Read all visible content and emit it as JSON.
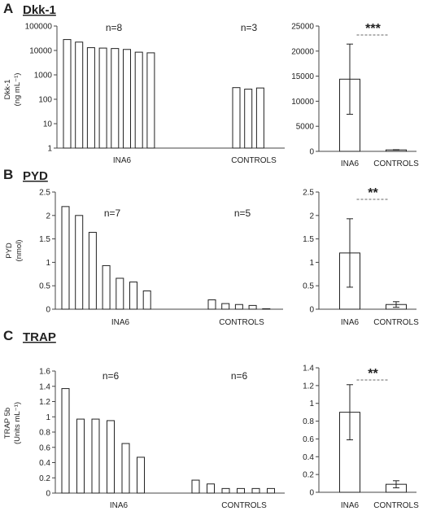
{
  "figure": {
    "panels": [
      {
        "letter": "A",
        "title": "Dkk-1",
        "ylabel_line1": "Dkk-1",
        "ylabel_line2": "(ng mL⁻¹)"
      },
      {
        "letter": "B",
        "title": "PYD",
        "ylabel_line1": "PYD",
        "ylabel_line2": "(nmol)"
      },
      {
        "letter": "C",
        "title": "TRAP",
        "ylabel_line1": "TRAP 5b",
        "ylabel_line2": "(Units mL⁻¹)"
      }
    ]
  },
  "chart_data": [
    {
      "type": "bar",
      "panel": "A",
      "role": "individual",
      "yscale": "log",
      "ylim": [
        1,
        100000
      ],
      "yticks": [
        "1",
        "10",
        "100",
        "1000",
        "10000",
        "100000"
      ],
      "groups": [
        {
          "label": "INA6",
          "n_label": "n=8",
          "values": [
            28000,
            22000,
            13000,
            12500,
            12000,
            11000,
            8500,
            8000
          ]
        },
        {
          "label": "CONTROLS",
          "n_label": "n=3",
          "values": [
            300,
            260,
            290
          ]
        }
      ]
    },
    {
      "type": "bar",
      "panel": "A",
      "role": "summary",
      "ylim": [
        0,
        25000
      ],
      "yticks": [
        "0",
        "5000",
        "10000",
        "15000",
        "20000",
        "25000"
      ],
      "categories": [
        "INA6",
        "CONTROLS"
      ],
      "values": [
        14400,
        290
      ],
      "errors": [
        7000,
        40
      ],
      "significance": "***"
    },
    {
      "type": "bar",
      "panel": "B",
      "role": "individual",
      "ylim": [
        0,
        2.5
      ],
      "yticks": [
        "0",
        "0.5",
        "1",
        "1.5",
        "2",
        "2.5"
      ],
      "groups": [
        {
          "label": "INA6",
          "n_label": "n=7",
          "values": [
            2.19,
            2.0,
            1.64,
            0.93,
            0.66,
            0.58,
            0.39
          ]
        },
        {
          "label": "CONTROLS",
          "n_label": "n=5",
          "values": [
            0.2,
            0.12,
            0.1,
            0.08,
            0.01
          ]
        }
      ]
    },
    {
      "type": "bar",
      "panel": "B",
      "role": "summary",
      "ylim": [
        0,
        2.5
      ],
      "yticks": [
        "0",
        "0.5",
        "1",
        "1.5",
        "2",
        "2.5"
      ],
      "categories": [
        "INA6",
        "CONTROLS"
      ],
      "values": [
        1.2,
        0.1
      ],
      "errors": [
        0.73,
        0.06
      ],
      "significance": "**"
    },
    {
      "type": "bar",
      "panel": "C",
      "role": "individual",
      "ylim": [
        0,
        1.6
      ],
      "yticks": [
        "0",
        "0.2",
        "0.4",
        "0.6",
        "0.8",
        "1",
        "1.2",
        "1.4",
        "1.6"
      ],
      "groups": [
        {
          "label": "INA6",
          "n_label": "n=6",
          "values": [
            1.37,
            0.97,
            0.97,
            0.95,
            0.65,
            0.47
          ]
        },
        {
          "label": "CONTROLS",
          "n_label": "n=6",
          "values": [
            0.17,
            0.12,
            0.06,
            0.06,
            0.06,
            0.06
          ]
        }
      ]
    },
    {
      "type": "bar",
      "panel": "C",
      "role": "summary",
      "ylim": [
        0,
        1.4
      ],
      "yticks": [
        "0",
        "0.2",
        "0.4",
        "0.6",
        "0.8",
        "1",
        "1.2",
        "1.4"
      ],
      "categories": [
        "INA6",
        "CONTROLS"
      ],
      "values": [
        0.9,
        0.09
      ],
      "errors": [
        0.31,
        0.04
      ],
      "significance": "**"
    }
  ]
}
